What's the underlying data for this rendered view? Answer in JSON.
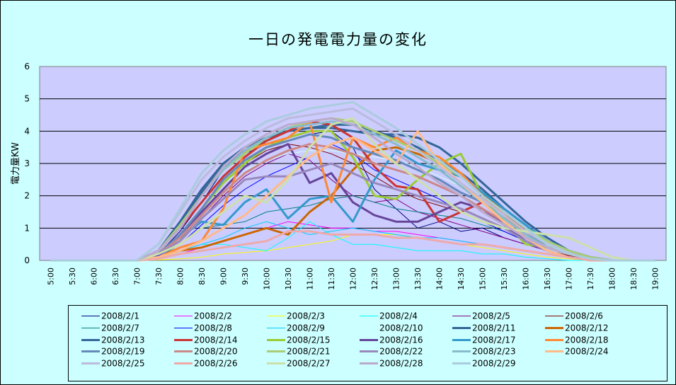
{
  "chart_data": {
    "type": "line",
    "title": "一日の発電電力量の変化",
    "ylabel": "電力量KW",
    "xlabel": "",
    "ylim": [
      0,
      6
    ],
    "yticks": [
      "0",
      "1",
      "2",
      "3",
      "4",
      "5",
      "6"
    ],
    "x": [
      "5:00",
      "5:30",
      "6:00",
      "6:30",
      "7:00",
      "7:30",
      "8:00",
      "8:30",
      "9:00",
      "9:30",
      "10:00",
      "10:30",
      "11:00",
      "11:30",
      "12:00",
      "12:30",
      "13:00",
      "13:30",
      "14:00",
      "14:30",
      "15:00",
      "15:30",
      "16:00",
      "16:30",
      "17:00",
      "17:30",
      "18:00",
      "18:30",
      "19:00"
    ],
    "plot_background": "#ccccff",
    "page_background": "#ccffff",
    "gridlines": true,
    "legend_position": "bottom",
    "series": [
      {
        "name": "2008/2/1",
        "color": "#000080",
        "width": 1,
        "values": [
          0,
          0,
          0,
          0,
          0,
          0.2,
          0.9,
          1.8,
          2.8,
          3.3,
          3.6,
          3.7,
          3.9,
          4.0,
          3.5,
          2.2,
          1.6,
          1.0,
          1.2,
          0.9,
          1.0,
          0.7,
          0.5,
          0.3,
          0.15,
          0.05,
          0,
          0,
          0
        ]
      },
      {
        "name": "2008/2/2",
        "color": "#ff00ff",
        "width": 1,
        "values": [
          0,
          0,
          0,
          0,
          0,
          0.05,
          0.2,
          0.4,
          0.6,
          0.8,
          1.0,
          1.2,
          1.1,
          1.0,
          1.0,
          0.9,
          0.9,
          0.8,
          0.7,
          0.6,
          0.5,
          0.4,
          0.3,
          0.2,
          0.1,
          0.05,
          0,
          0,
          0
        ]
      },
      {
        "name": "2008/2/3",
        "color": "#ffff00",
        "width": 1,
        "values": [
          0,
          0,
          0,
          0,
          0,
          0.02,
          0.05,
          0.1,
          0.2,
          0.25,
          0.3,
          0.4,
          0.5,
          0.6,
          0.8,
          0.8,
          0.8,
          0.7,
          0.6,
          0.5,
          0.4,
          0.3,
          0.2,
          0.1,
          0.05,
          0,
          0,
          0,
          0
        ]
      },
      {
        "name": "2008/2/4",
        "color": "#00ffff",
        "width": 1,
        "values": [
          0,
          0,
          0,
          0,
          0,
          0.1,
          0.3,
          0.5,
          0.5,
          0.4,
          0.3,
          0.7,
          1.2,
          0.8,
          0.5,
          0.5,
          0.4,
          0.3,
          0.3,
          0.3,
          0.2,
          0.2,
          0.1,
          0.05,
          0,
          0,
          0,
          0,
          0
        ]
      },
      {
        "name": "2008/2/5",
        "color": "#800080",
        "width": 1,
        "values": [
          0,
          0,
          0,
          0,
          0,
          0.2,
          0.6,
          1.3,
          2.0,
          2.6,
          3.0,
          3.3,
          3.1,
          2.5,
          2.0,
          1.8,
          1.9,
          1.5,
          1.3,
          1.1,
          0.9,
          0.7,
          0.5,
          0.3,
          0.1,
          0.05,
          0,
          0,
          0
        ]
      },
      {
        "name": "2008/2/6",
        "color": "#800000",
        "width": 1,
        "values": [
          0,
          0,
          0,
          0,
          0,
          0.2,
          0.8,
          1.6,
          2.4,
          3.0,
          3.4,
          3.6,
          3.5,
          3.3,
          3.0,
          2.6,
          2.2,
          1.9,
          1.7,
          1.5,
          1.2,
          0.9,
          0.6,
          0.3,
          0.15,
          0.05,
          0,
          0,
          0
        ]
      },
      {
        "name": "2008/2/7",
        "color": "#008080",
        "width": 1,
        "values": [
          0,
          0,
          0,
          0,
          0,
          0.1,
          0.5,
          1.0,
          1.1,
          1.2,
          1.5,
          1.6,
          1.7,
          1.9,
          2.0,
          1.8,
          1.6,
          1.5,
          1.4,
          1.3,
          1.1,
          0.9,
          0.6,
          0.4,
          0.2,
          0.05,
          0,
          0,
          0
        ]
      },
      {
        "name": "2008/2/8",
        "color": "#0000ff",
        "width": 1,
        "values": [
          0,
          0,
          0,
          0,
          0,
          0.15,
          0.5,
          1.1,
          1.7,
          2.2,
          2.6,
          2.9,
          3.2,
          3.6,
          3.3,
          2.8,
          2.5,
          2.2,
          1.9,
          1.5,
          1.2,
          0.9,
          0.6,
          0.3,
          0.1,
          0,
          0,
          0,
          0
        ]
      },
      {
        "name": "2008/2/9",
        "color": "#00ccff",
        "width": 1,
        "values": [
          0,
          0,
          0,
          0,
          0,
          0.1,
          0.3,
          0.5,
          0.7,
          1.0,
          1.2,
          1.0,
          0.8,
          0.9,
          1.0,
          0.9,
          0.8,
          0.7,
          0.7,
          0.6,
          0.5,
          0.4,
          0.3,
          0.2,
          0.1,
          0,
          0,
          0,
          0
        ]
      },
      {
        "name": "2008/2/10",
        "color": "#ccffff",
        "width": 1,
        "values": [
          0,
          0,
          0,
          0,
          0,
          0.3,
          1.0,
          1.8,
          2.4,
          2.8,
          3.1,
          3.3,
          3.4,
          3.4,
          3.3,
          3.2,
          3.1,
          2.9,
          2.6,
          2.3,
          1.9,
          1.5,
          1.0,
          0.6,
          0.3,
          0.1,
          0,
          0,
          0
        ]
      },
      {
        "name": "2008/2/11",
        "color": "#336699",
        "width": 3,
        "values": [
          0,
          0,
          0,
          0,
          0,
          0.3,
          1.2,
          2.2,
          3.0,
          3.5,
          3.8,
          4.0,
          4.1,
          4.2,
          4.2,
          4.0,
          3.8,
          3.5,
          3.1,
          2.7,
          2.2,
          1.6,
          1.1,
          0.6,
          0.3,
          0.1,
          0,
          0,
          0
        ]
      },
      {
        "name": "2008/2/12",
        "color": "#cc6600",
        "width": 3,
        "values": [
          0,
          0,
          0,
          0,
          0,
          0.1,
          0.3,
          0.4,
          0.6,
          0.8,
          1.0,
          0.8,
          1.5,
          2.0,
          2.8,
          3.4,
          3.5,
          3.3,
          3.0,
          2.6,
          2.1,
          1.5,
          0.9,
          0.5,
          0.2,
          0.05,
          0,
          0,
          0
        ]
      },
      {
        "name": "2008/2/13",
        "color": "#336699",
        "width": 3,
        "values": [
          0,
          0,
          0,
          0,
          0,
          0.3,
          1.1,
          2.1,
          2.9,
          3.4,
          3.7,
          4.0,
          4.1,
          4.1,
          4.0,
          3.9,
          3.9,
          3.8,
          3.5,
          3.0,
          2.4,
          1.8,
          1.2,
          0.7,
          0.3,
          0.1,
          0,
          0,
          0
        ]
      },
      {
        "name": "2008/2/14",
        "color": "#cc3333",
        "width": 3,
        "values": [
          0,
          0,
          0,
          0,
          0,
          0.3,
          1.0,
          1.8,
          2.6,
          3.2,
          3.7,
          4.0,
          4.3,
          4.2,
          3.8,
          2.9,
          2.3,
          2.2,
          1.2,
          1.5,
          1.8,
          1.2,
          0.7,
          0.4,
          0.2,
          0.05,
          0,
          0,
          0
        ]
      },
      {
        "name": "2008/2/15",
        "color": "#99cc33",
        "width": 3,
        "values": [
          0,
          0,
          0,
          0,
          0,
          0.2,
          0.8,
          1.6,
          2.4,
          3.0,
          3.5,
          3.8,
          4.0,
          4.0,
          3.2,
          2.0,
          1.9,
          2.5,
          3.0,
          3.3,
          2.0,
          1.2,
          0.5,
          0.4,
          0.2,
          0.05,
          0,
          0,
          0
        ]
      },
      {
        "name": "2008/2/16",
        "color": "#664499",
        "width": 3,
        "values": [
          0,
          0,
          0,
          0,
          0,
          0.2,
          0.8,
          1.5,
          2.2,
          2.9,
          3.3,
          3.6,
          2.4,
          2.7,
          1.8,
          1.4,
          1.2,
          1.2,
          1.5,
          1.8,
          1.6,
          1.1,
          0.6,
          0.3,
          0.1,
          0,
          0,
          0,
          0
        ]
      },
      {
        "name": "2008/2/17",
        "color": "#3399cc",
        "width": 3,
        "values": [
          0,
          0,
          0,
          0,
          0,
          0.2,
          0.7,
          1.2,
          1.1,
          1.8,
          2.2,
          1.3,
          1.9,
          2.0,
          1.2,
          2.5,
          3.4,
          3.0,
          2.8,
          2.6,
          2.1,
          1.6,
          1.1,
          0.6,
          0.3,
          0.1,
          0,
          0,
          0
        ]
      },
      {
        "name": "2008/2/18",
        "color": "#ff8833",
        "width": 3,
        "values": [
          0,
          0,
          0,
          0,
          0,
          0.1,
          0.4,
          0.6,
          1.6,
          3.4,
          3.6,
          3.8,
          4.3,
          1.8,
          3.8,
          3.5,
          3.8,
          3.4,
          3.2,
          2.7,
          2.0,
          1.4,
          0.8,
          0.5,
          0.2,
          0.05,
          0,
          0,
          0
        ]
      },
      {
        "name": "2008/2/19",
        "color": "#6688bb",
        "width": 3,
        "values": [
          0,
          0,
          0,
          0,
          0,
          0.2,
          0.8,
          1.6,
          2.5,
          3.1,
          3.5,
          3.7,
          3.9,
          3.8,
          3.5,
          3.3,
          3.1,
          2.8,
          2.5,
          2.1,
          1.8,
          1.3,
          0.8,
          0.5,
          0.2,
          0.05,
          0,
          0,
          0
        ]
      },
      {
        "name": "2008/2/20",
        "color": "#cc8888",
        "width": 3,
        "values": [
          0,
          0,
          0,
          0,
          0,
          0.2,
          0.7,
          1.4,
          2.1,
          2.7,
          3.1,
          3.4,
          3.6,
          3.5,
          3.3,
          3.0,
          2.8,
          2.6,
          2.3,
          2.0,
          1.6,
          1.2,
          0.7,
          0.4,
          0.2,
          0.05,
          0,
          0,
          0
        ]
      },
      {
        "name": "2008/2/21",
        "color": "#aacc77",
        "width": 3,
        "values": [
          0,
          0,
          0,
          0,
          0,
          0.3,
          1.1,
          2.0,
          2.8,
          3.3,
          3.8,
          4.1,
          4.3,
          4.4,
          4.3,
          4.0,
          3.7,
          3.4,
          3.0,
          2.6,
          2.0,
          1.5,
          1.0,
          0.6,
          0.3,
          0.1,
          0,
          0,
          0
        ]
      },
      {
        "name": "2008/2/22",
        "color": "#9988bb",
        "width": 3,
        "values": [
          0,
          0,
          0,
          0,
          0,
          0.2,
          0.6,
          1.3,
          1.9,
          2.5,
          2.6,
          2.6,
          2.8,
          3.0,
          2.7,
          2.4,
          2.2,
          2.0,
          1.8,
          1.6,
          1.3,
          1.0,
          0.6,
          0.3,
          0.1,
          0,
          0,
          0,
          0
        ]
      },
      {
        "name": "2008/2/23",
        "color": "#88bbcc",
        "width": 3,
        "values": [
          0,
          0,
          0,
          0,
          0,
          0.3,
          1.0,
          2.0,
          2.8,
          3.4,
          3.8,
          4.1,
          4.2,
          4.3,
          4.2,
          3.9,
          3.6,
          3.2,
          2.8,
          2.3,
          1.8,
          1.3,
          0.8,
          0.4,
          0.2,
          0.05,
          0,
          0,
          0
        ]
      },
      {
        "name": "2008/2/24",
        "color": "#ffbb88",
        "width": 3,
        "values": [
          0,
          0,
          0,
          0,
          0,
          0.1,
          0.3,
          0.6,
          1.0,
          1.4,
          2.0,
          2.6,
          3.2,
          3.6,
          3.8,
          3.4,
          3.0,
          4.0,
          3.0,
          2.4,
          1.8,
          1.2,
          0.7,
          0.3,
          0.1,
          0,
          0,
          0,
          0
        ]
      },
      {
        "name": "2008/2/25",
        "color": "#bbbbdd",
        "width": 3,
        "values": [
          0,
          0,
          0,
          0,
          0,
          0.5,
          1.5,
          2.5,
          3.2,
          3.7,
          4.1,
          4.4,
          4.5,
          4.6,
          4.7,
          4.3,
          3.9,
          3.4,
          2.9,
          2.4,
          1.9,
          1.4,
          0.9,
          0.5,
          0.2,
          0.05,
          0,
          0,
          0
        ]
      },
      {
        "name": "2008/2/26",
        "color": "#eeaaaa",
        "width": 3,
        "values": [
          0,
          0,
          0,
          0,
          0,
          0.05,
          0.2,
          0.3,
          0.4,
          0.5,
          0.6,
          0.9,
          0.9,
          0.8,
          0.8,
          0.8,
          0.7,
          0.7,
          0.6,
          0.5,
          0.5,
          0.4,
          0.3,
          0.2,
          0.1,
          0,
          0,
          0,
          0
        ]
      },
      {
        "name": "2008/2/27",
        "color": "#cce0aa",
        "width": 3,
        "values": [
          0,
          0,
          0,
          0,
          0,
          0.2,
          0.5,
          1.0,
          1.5,
          2.0,
          1.8,
          2.5,
          3.5,
          4.2,
          4.4,
          3.6,
          3.0,
          2.5,
          2.0,
          1.5,
          1.2,
          1.0,
          0.9,
          0.8,
          0.7,
          0.4,
          0.1,
          0,
          0
        ]
      },
      {
        "name": "2008/2/28",
        "color": "#bbaacc",
        "width": 3,
        "values": [
          0,
          0,
          0,
          0,
          0,
          0.3,
          1.0,
          2.0,
          2.9,
          3.5,
          3.9,
          4.2,
          4.3,
          4.4,
          4.2,
          3.8,
          3.3,
          2.9,
          2.4,
          2.0,
          1.5,
          1.1,
          0.7,
          0.4,
          0.2,
          0.05,
          0,
          0,
          0
        ]
      },
      {
        "name": "2008/2/29",
        "color": "#aaccdd",
        "width": 3,
        "values": [
          0,
          0,
          0,
          0,
          0,
          0.5,
          1.6,
          2.7,
          3.4,
          3.9,
          4.3,
          4.5,
          4.7,
          4.8,
          4.9,
          4.5,
          4.1,
          3.6,
          3.1,
          2.6,
          2.0,
          1.5,
          1.0,
          0.5,
          0.2,
          0.05,
          0,
          0,
          0
        ]
      }
    ]
  }
}
